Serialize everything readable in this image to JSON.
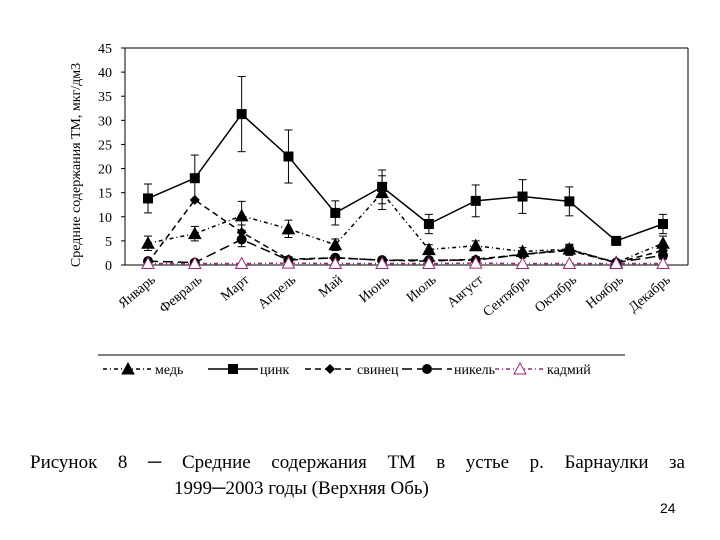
{
  "chart_data": {
    "type": "line",
    "ylabel": "Средние содержания ТМ, мкг/дм3",
    "xlabel": "",
    "ylim": [
      0,
      45
    ],
    "yticks": [
      "0",
      "5",
      "10",
      "15",
      "20",
      "25",
      "30",
      "35",
      "40",
      "45"
    ],
    "categories": [
      "Январь",
      "Февраль",
      "Март",
      "Апрель",
      "Май",
      "Июнь",
      "Июль",
      "Август",
      "Сентябрь",
      "Октябрь",
      "Ноябрь",
      "Декабрь"
    ],
    "grid": false,
    "legend_position": "bottom",
    "series": [
      {
        "name": "медь",
        "marker": "triangle-filled",
        "line": "dash-dot",
        "color": "#000000",
        "values": [
          4.5,
          6.5,
          10.2,
          7.5,
          4.2,
          15.0,
          3.2,
          4.0,
          2.8,
          3.3,
          0.5,
          4.5
        ],
        "errors": [
          1.5,
          1.5,
          3.0,
          1.8,
          1.2,
          3.5,
          1.0,
          1.0,
          0.8,
          1.0,
          0.5,
          1.5
        ]
      },
      {
        "name": "цинк",
        "marker": "square-filled",
        "line": "solid",
        "color": "#000000",
        "values": [
          13.8,
          18.0,
          31.3,
          22.5,
          10.8,
          16.2,
          8.5,
          13.3,
          14.2,
          13.2,
          5.0,
          8.5
        ],
        "errors": [
          3.0,
          4.8,
          7.8,
          5.5,
          2.5,
          3.5,
          2.0,
          3.3,
          3.5,
          3.0,
          0.8,
          2.0
        ]
      },
      {
        "name": "свинец",
        "marker": "diamond-filled",
        "line": "dashed",
        "color": "#000000",
        "values": [
          0.5,
          13.5,
          6.8,
          1.2,
          1.5,
          1.0,
          0.8,
          1.2,
          2.2,
          3.0,
          0.5,
          3.0
        ],
        "errors": [
          0.5,
          0.0,
          1.5,
          0.5,
          0.5,
          0.5,
          0.5,
          0.5,
          0.5,
          1.0,
          0.5,
          1.0
        ]
      },
      {
        "name": "никель",
        "marker": "circle-filled",
        "line": "long-dash",
        "color": "#000000",
        "values": [
          0.8,
          0.5,
          5.3,
          1.0,
          1.5,
          1.0,
          1.0,
          1.0,
          2.2,
          3.2,
          0.5,
          2.0
        ],
        "errors": [
          0.5,
          0.5,
          1.5,
          0.5,
          0.5,
          0.5,
          0.5,
          0.5,
          0.5,
          1.0,
          0.5,
          0.8
        ]
      },
      {
        "name": "кадмий",
        "marker": "triangle-open",
        "line": "dash-dot",
        "color": "#a0287a",
        "values": [
          0.3,
          0.3,
          0.3,
          0.4,
          0.3,
          0.3,
          0.3,
          0.4,
          0.3,
          0.3,
          0.3,
          0.3
        ],
        "errors": [
          0,
          0,
          0,
          0,
          0,
          0,
          0,
          0,
          0,
          0,
          0,
          0
        ]
      }
    ]
  },
  "caption": {
    "label": "Рисунок",
    "number": "8",
    "dash": "─",
    "words": [
      "Средние",
      "содержания",
      "ТМ",
      "в",
      "устье",
      "р.",
      "Барнаулки",
      "за"
    ],
    "line2": "1999─2003 годы (Верхняя Обь)"
  },
  "page_number": "24"
}
